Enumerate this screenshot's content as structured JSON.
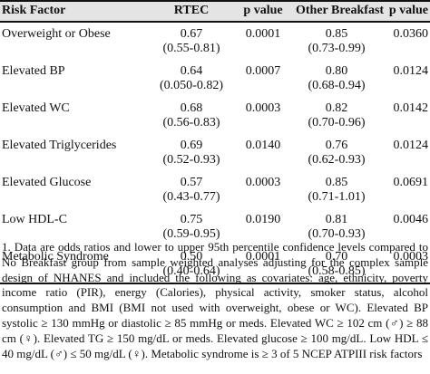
{
  "header": {
    "risk_factor": "Risk Factor",
    "rtec": "RTEC",
    "p_value_1": "p value",
    "other_breakfast": "Other Breakfast",
    "p_value_2": "p value"
  },
  "rows": [
    {
      "factor": "Overweight or Obese",
      "rtec": "0.67",
      "rtec_ci": "(0.55-0.81)",
      "p1": "0.0001",
      "other": "0.85",
      "other_ci": "(0.73-0.99)",
      "p2": "0.0360"
    },
    {
      "factor": "Elevated BP",
      "rtec": "0.64",
      "rtec_ci": "(0.050-0.82)",
      "p1": "0.0007",
      "other": "0.80",
      "other_ci": "(0.68-0.94)",
      "p2": "0.0124"
    },
    {
      "factor": "Elevated WC",
      "rtec": "0.68",
      "rtec_ci": "(0.56-0.83)",
      "p1": "0.0003",
      "other": "0.82",
      "other_ci": "(0.70-0.96)",
      "p2": "0.0142"
    },
    {
      "factor": "Elevated Triglycerides",
      "rtec": "0.69",
      "rtec_ci": "(0.52-0.93)",
      "p1": "0.0140",
      "other": "0.76",
      "other_ci": "(0.62-0.93)",
      "p2": "0.0124"
    },
    {
      "factor": "Elevated Glucose",
      "rtec": "0.57",
      "rtec_ci": "(0.43-0.77)",
      "p1": "0.0003",
      "other": "0.85",
      "other_ci": "(0.71-1.01)",
      "p2": "0.0691"
    },
    {
      "factor": "Low HDL-C",
      "rtec": "0.75",
      "rtec_ci": "(0.59-0.95)",
      "p1": "0.0190",
      "other": "0.81",
      "other_ci": "(0.70-0.93)",
      "p2": "0.0046"
    },
    {
      "factor": "Metabolic Syndrome",
      "rtec": "0.50",
      "rtec_ci": "(0.40-0.64)",
      "p1": "0.0001",
      "other": "0.70",
      "other_ci": "(0.58-0.85)",
      "p2": "0.0003"
    }
  ],
  "footnote": "1. Data are odds ratios and lower to upper 95th percentile confidence levels compared to No Breakfast group from sample weighted analyses adjusting for the complex sample design of NHANES and included the following as covariates: age, ethnicity, poverty income ratio (PIR), energy (Calories), physical activity, smoker status, alcohol consumption and BMI (BMI not used with overweight, obese or WC). Elevated BP systolic ≥ 130 mmHg or diastolic ≥ 85 mmHg or meds. Elevated WC ≥ 102 cm (♂) ≥ 88 cm (♀). Elevated TG ≥ 150 mg/dL or meds. Elevated glucose ≥ 100 mg/dL. Low HDL ≤ 40 mg/dL (♂) ≤ 50 mg/dL (♀). Metabolic syndrome is ≥ 3 of 5 NCEP ATPIII risk factors"
}
